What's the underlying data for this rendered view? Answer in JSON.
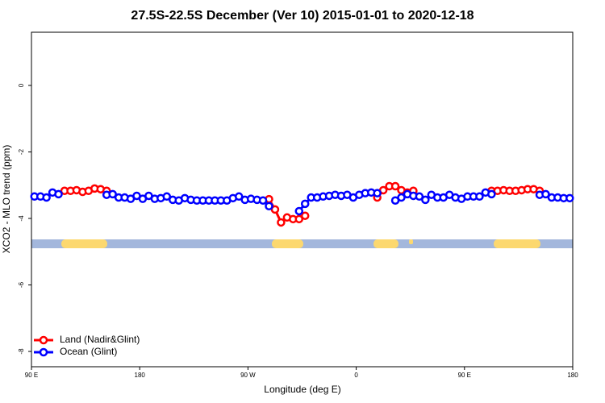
{
  "chart_data": {
    "type": "line",
    "title": "27.5S-22.5S December (Ver 10)   2015-01-01 to 2020-12-18",
    "xlabel": "Longitude (deg E)",
    "ylabel": "XCO2 - MLO trend (ppm)",
    "x": [
      92.5,
      97.5,
      102.5,
      107.5,
      112.5,
      117.5,
      122.5,
      127.5,
      132.5,
      137.5,
      142.5,
      147.5,
      152.5,
      157.5,
      162.5,
      167.5,
      172.5,
      177.5,
      182.5,
      187.5,
      192.5,
      197.5,
      202.5,
      207.5,
      212.5,
      217.5,
      222.5,
      227.5,
      232.5,
      237.5,
      242.5,
      247.5,
      252.5,
      257.5,
      262.5,
      267.5,
      272.5,
      277.5,
      282.5,
      287.5,
      292.5,
      297.5,
      302.5,
      307.5,
      312.5,
      317.5,
      322.5,
      327.5,
      332.5,
      337.5,
      342.5,
      347.5,
      352.5,
      357.5,
      362.5,
      367.5,
      372.5,
      377.5,
      382.5,
      387.5,
      392.5,
      397.5,
      402.5,
      407.5,
      412.5,
      417.5,
      422.5,
      427.5,
      432.5,
      437.5,
      442.5,
      447.5,
      452.5,
      457.5,
      462.5,
      467.5,
      472.5,
      477.5,
      482.5,
      487.5,
      492.5,
      497.5,
      502.5,
      507.5,
      512.5,
      517.5,
      522.5,
      527.5,
      532.5,
      537.5
    ],
    "series": [
      {
        "name": "Land (Nadir&Glint)",
        "color": "#ff0000",
        "values": [
          null,
          null,
          null,
          null,
          null,
          -3.17,
          -3.17,
          -3.15,
          -3.2,
          -3.17,
          -3.1,
          -3.12,
          -3.17,
          null,
          null,
          null,
          null,
          null,
          null,
          null,
          null,
          null,
          null,
          null,
          null,
          null,
          null,
          null,
          null,
          null,
          null,
          null,
          null,
          null,
          null,
          null,
          null,
          null,
          null,
          -3.42,
          -3.73,
          -4.12,
          -3.97,
          -4.02,
          -4.02,
          -3.92,
          null,
          null,
          null,
          null,
          null,
          null,
          null,
          null,
          null,
          null,
          null,
          -3.37,
          -3.15,
          -3.03,
          -3.03,
          -3.15,
          -3.22,
          -3.17,
          null,
          null,
          null,
          null,
          null,
          null,
          null,
          null,
          null,
          null,
          null,
          null,
          -3.17,
          -3.17,
          -3.15,
          -3.17,
          -3.17,
          -3.15,
          -3.12,
          -3.12,
          -3.17,
          null,
          null,
          null,
          null,
          null
        ]
      },
      {
        "name": "Ocean (Glint)",
        "color": "#0000ff",
        "values": [
          -3.34,
          -3.34,
          -3.37,
          -3.22,
          -3.27,
          null,
          null,
          null,
          null,
          null,
          null,
          null,
          -3.29,
          -3.27,
          -3.37,
          -3.37,
          -3.41,
          -3.32,
          -3.41,
          -3.32,
          -3.41,
          -3.39,
          -3.34,
          -3.44,
          -3.46,
          -3.39,
          -3.44,
          -3.46,
          -3.46,
          -3.46,
          -3.46,
          -3.46,
          -3.46,
          -3.39,
          -3.34,
          -3.44,
          -3.41,
          -3.44,
          -3.46,
          -3.63,
          null,
          null,
          null,
          null,
          -3.78,
          -3.56,
          -3.37,
          -3.37,
          -3.34,
          -3.32,
          -3.29,
          -3.32,
          -3.29,
          -3.37,
          -3.29,
          -3.24,
          -3.22,
          -3.24,
          null,
          null,
          -3.46,
          -3.37,
          -3.27,
          -3.32,
          -3.34,
          -3.44,
          -3.29,
          -3.37,
          -3.37,
          -3.29,
          -3.37,
          -3.41,
          -3.34,
          -3.34,
          -3.34,
          -3.22,
          -3.27,
          null,
          null,
          null,
          null,
          null,
          null,
          null,
          -3.29,
          -3.27,
          -3.37,
          -3.37,
          -3.39,
          -3.39
        ]
      }
    ],
    "xlim": [
      90,
      540
    ],
    "xticks": [
      {
        "value": 90,
        "label": "90 E"
      },
      180,
      {
        "value": 270,
        "label": "90 W"
      },
      {
        "value": 360,
        "label": "0"
      },
      {
        "value": 450,
        "label": "90 E"
      },
      {
        "value": 540,
        "label": "180"
      }
    ],
    "ylim": [
      -8.46,
      1.6
    ],
    "yticks": [
      0,
      -2,
      -4,
      -6,
      -8
    ],
    "legend": "bottom-left"
  }
}
